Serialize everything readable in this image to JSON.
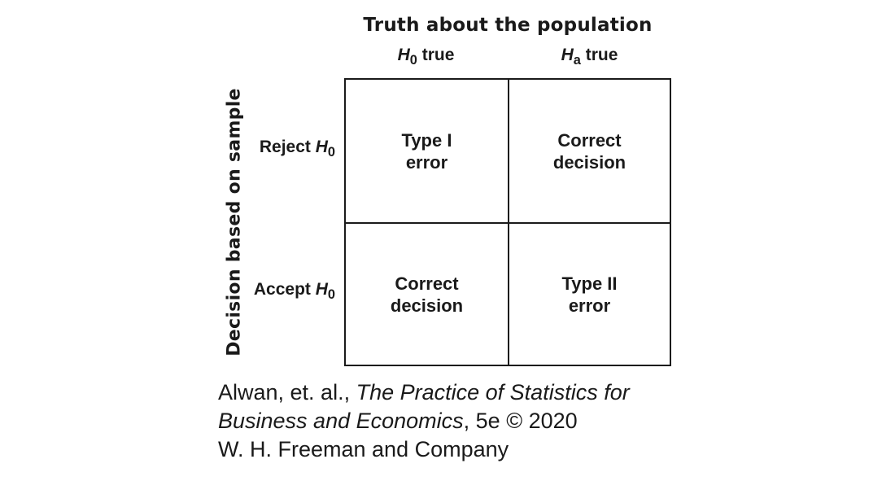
{
  "column_header": {
    "title": "Truth about the population",
    "columns": [
      {
        "symbol": "H",
        "subscript": "0",
        "suffix": " true"
      },
      {
        "symbol": "H",
        "subscript": "a",
        "suffix": " true"
      }
    ]
  },
  "row_header": {
    "title": "Decision based on sample",
    "rows": [
      {
        "prefix": "Reject ",
        "symbol": "H",
        "subscript": "0"
      },
      {
        "prefix": "Accept ",
        "symbol": "H",
        "subscript": "0"
      }
    ]
  },
  "cells": [
    {
      "line1": "Type I",
      "line2": "error"
    },
    {
      "line1": "Correct",
      "line2": "decision"
    },
    {
      "line1": "Correct",
      "line2": "decision"
    },
    {
      "line1": "Type II",
      "line2": "error"
    }
  ],
  "credit": {
    "line1_plain": "Alwan, et. al., ",
    "line1_italic": "The Practice of Statistics for",
    "line2_italic": "Business and Economics",
    "line2_plain": ", 5e © 2020",
    "line3": "W. H. Freeman and Company"
  }
}
